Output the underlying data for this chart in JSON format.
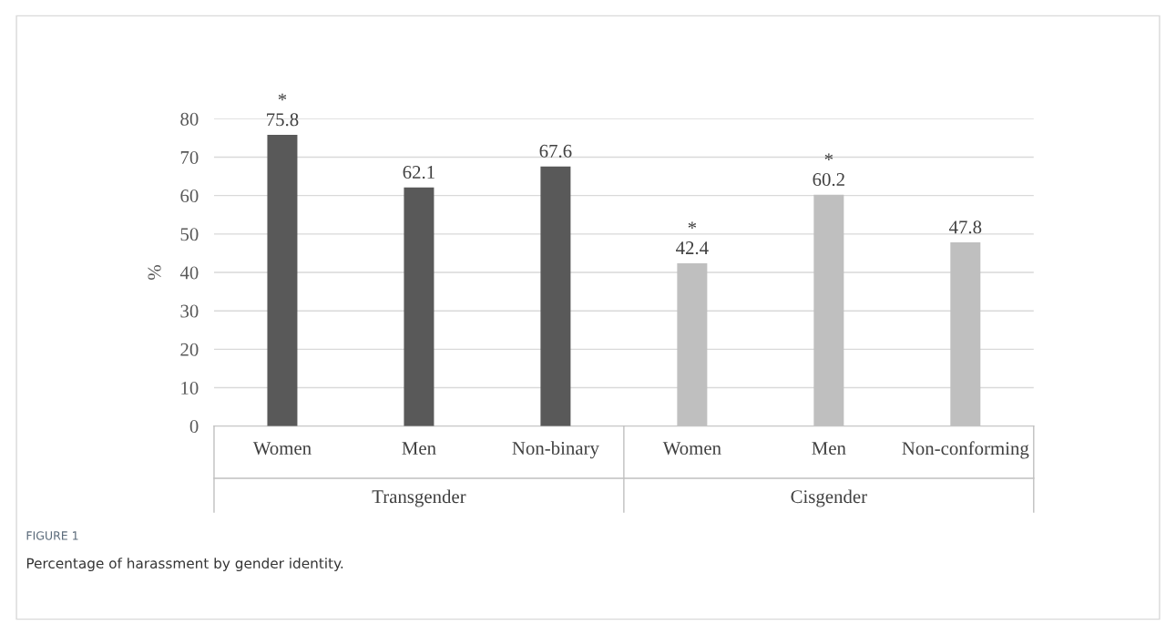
{
  "chart_data": {
    "type": "bar",
    "title": "FIGURE 1",
    "subtitle": "Percentage of harassment by gender identity.",
    "ylabel": "%",
    "categories": [
      "Women",
      "Men",
      "Non-binary",
      "Women",
      "Men",
      "Non-conforming"
    ],
    "values": [
      75.8,
      62.1,
      67.6,
      42.4,
      60.2,
      47.8
    ],
    "colors": [
      "#595959",
      "#595959",
      "#595959",
      "#bfbfbf",
      "#bfbfbf",
      "#bfbfbf"
    ],
    "value_labels": [
      "*\n75.8",
      "62.1",
      "67.6",
      "*\n42.4",
      "*\n60.2",
      "47.8"
    ],
    "annotations": [
      "Transgender",
      "Cisgender"
    ],
    "ylim": [
      0,
      80
    ],
    "yticks": [
      0,
      10,
      20,
      30,
      40,
      50,
      60,
      70,
      80
    ],
    "grid": "y"
  }
}
